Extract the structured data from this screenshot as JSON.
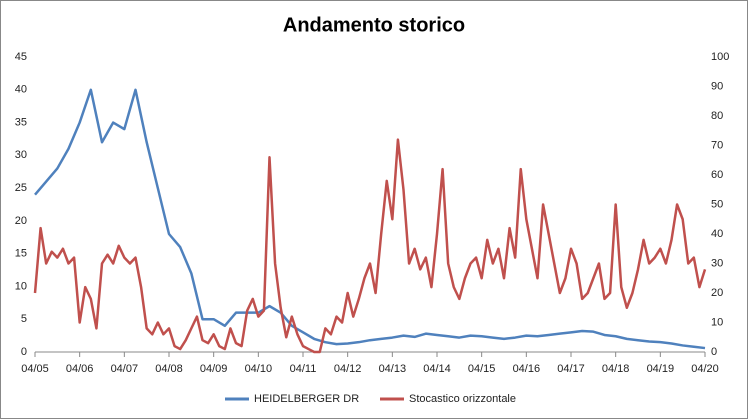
{
  "chart_data": {
    "type": "line",
    "title": "Andamento storico",
    "xlim": [
      2005.25,
      2020.25
    ],
    "xticks": [
      {
        "value": 2005.25,
        "label": "04/05"
      },
      {
        "value": 2006.25,
        "label": "04/06"
      },
      {
        "value": 2007.25,
        "label": "04/07"
      },
      {
        "value": 2008.25,
        "label": "04/08"
      },
      {
        "value": 2009.25,
        "label": "04/09"
      },
      {
        "value": 2010.25,
        "label": "04/10"
      },
      {
        "value": 2011.25,
        "label": "04/11"
      },
      {
        "value": 2012.25,
        "label": "04/12"
      },
      {
        "value": 2013.25,
        "label": "04/13"
      },
      {
        "value": 2014.25,
        "label": "04/14"
      },
      {
        "value": 2015.25,
        "label": "04/15"
      },
      {
        "value": 2016.25,
        "label": "04/16"
      },
      {
        "value": 2017.25,
        "label": "04/17"
      },
      {
        "value": 2018.25,
        "label": "04/18"
      },
      {
        "value": 2019.25,
        "label": "04/19"
      },
      {
        "value": 2020.25,
        "label": "04/20"
      }
    ],
    "ylim": [
      0,
      45
    ],
    "yticks": [
      0,
      5,
      10,
      15,
      20,
      25,
      30,
      35,
      40,
      45
    ],
    "y2lim": [
      0,
      100
    ],
    "y2ticks": [
      0,
      10,
      20,
      30,
      40,
      50,
      60,
      70,
      80,
      90,
      100
    ],
    "series": [
      {
        "name": "HEIDELBERGER DR",
        "color": "#4f81bd",
        "axis": "y",
        "x": [
          2005.25,
          2005.5,
          2005.75,
          2006.0,
          2006.25,
          2006.5,
          2006.75,
          2007.0,
          2007.25,
          2007.5,
          2007.75,
          2008.0,
          2008.25,
          2008.5,
          2008.75,
          2009.0,
          2009.25,
          2009.5,
          2009.75,
          2010.0,
          2010.25,
          2010.5,
          2010.75,
          2011.0,
          2011.25,
          2011.5,
          2011.75,
          2012.0,
          2012.25,
          2012.5,
          2012.75,
          2013.0,
          2013.25,
          2013.5,
          2013.75,
          2014.0,
          2014.25,
          2014.5,
          2014.75,
          2015.0,
          2015.25,
          2015.5,
          2015.75,
          2016.0,
          2016.25,
          2016.5,
          2016.75,
          2017.0,
          2017.25,
          2017.5,
          2017.75,
          2018.0,
          2018.25,
          2018.5,
          2018.75,
          2019.0,
          2019.25,
          2019.5,
          2019.75,
          2020.0,
          2020.25
        ],
        "values": [
          24,
          26,
          28,
          31,
          35,
          40,
          32,
          35,
          34,
          40,
          32,
          25,
          18,
          16,
          12,
          5,
          5,
          4,
          6,
          6,
          6,
          7,
          6,
          4,
          3,
          2,
          1.5,
          1.2,
          1.3,
          1.5,
          1.8,
          2,
          2.2,
          2.5,
          2.3,
          2.8,
          2.6,
          2.4,
          2.2,
          2.5,
          2.4,
          2.2,
          2.0,
          2.2,
          2.5,
          2.4,
          2.6,
          2.8,
          3.0,
          3.2,
          3.1,
          2.6,
          2.4,
          2.0,
          1.8,
          1.6,
          1.5,
          1.3,
          1.0,
          0.8,
          0.6
        ]
      },
      {
        "name": "Stocastico orizzontale",
        "color": "#c0504d",
        "axis": "y2",
        "x": [
          2005.25,
          2005.375,
          2005.5,
          2005.625,
          2005.75,
          2005.875,
          2006.0,
          2006.125,
          2006.25,
          2006.375,
          2006.5,
          2006.625,
          2006.75,
          2006.875,
          2007.0,
          2007.125,
          2007.25,
          2007.375,
          2007.5,
          2007.625,
          2007.75,
          2007.875,
          2008.0,
          2008.125,
          2008.25,
          2008.375,
          2008.5,
          2008.625,
          2008.75,
          2008.875,
          2009.0,
          2009.125,
          2009.25,
          2009.375,
          2009.5,
          2009.625,
          2009.75,
          2009.875,
          2010.0,
          2010.125,
          2010.25,
          2010.375,
          2010.5,
          2010.625,
          2010.75,
          2010.875,
          2011.0,
          2011.125,
          2011.25,
          2011.375,
          2011.5,
          2011.625,
          2011.75,
          2011.875,
          2012.0,
          2012.125,
          2012.25,
          2012.375,
          2012.5,
          2012.625,
          2012.75,
          2012.875,
          2013.0,
          2013.125,
          2013.25,
          2013.375,
          2013.5,
          2013.625,
          2013.75,
          2013.875,
          2014.0,
          2014.125,
          2014.25,
          2014.375,
          2014.5,
          2014.625,
          2014.75,
          2014.875,
          2015.0,
          2015.125,
          2015.25,
          2015.375,
          2015.5,
          2015.625,
          2015.75,
          2015.875,
          2016.0,
          2016.125,
          2016.25,
          2016.375,
          2016.5,
          2016.625,
          2016.75,
          2016.875,
          2017.0,
          2017.125,
          2017.25,
          2017.375,
          2017.5,
          2017.625,
          2017.75,
          2017.875,
          2018.0,
          2018.125,
          2018.25,
          2018.375,
          2018.5,
          2018.625,
          2018.75,
          2018.875,
          2019.0,
          2019.125,
          2019.25,
          2019.375,
          2019.5,
          2019.625,
          2019.75,
          2019.875,
          2020.0,
          2020.125,
          2020.25
        ],
        "values": [
          20,
          42,
          30,
          34,
          32,
          35,
          30,
          32,
          10,
          22,
          18,
          8,
          30,
          33,
          30,
          36,
          32,
          30,
          32,
          22,
          8,
          6,
          10,
          6,
          8,
          2,
          1,
          4,
          8,
          12,
          4,
          3,
          6,
          2,
          1,
          8,
          3,
          2,
          14,
          18,
          12,
          14,
          66,
          30,
          15,
          5,
          12,
          6,
          2,
          1,
          0,
          0,
          8,
          6,
          12,
          10,
          20,
          12,
          18,
          25,
          30,
          20,
          40,
          58,
          45,
          72,
          55,
          30,
          35,
          28,
          32,
          22,
          40,
          62,
          30,
          22,
          18,
          25,
          30,
          32,
          25,
          38,
          30,
          35,
          25,
          42,
          32,
          62,
          45,
          35,
          25,
          50,
          40,
          30,
          20,
          25,
          35,
          30,
          18,
          20,
          25,
          30,
          18,
          20,
          50,
          22,
          15,
          20,
          28,
          38,
          30,
          32,
          35,
          30,
          38,
          50,
          45,
          30,
          32,
          22,
          28
        ]
      }
    ]
  }
}
